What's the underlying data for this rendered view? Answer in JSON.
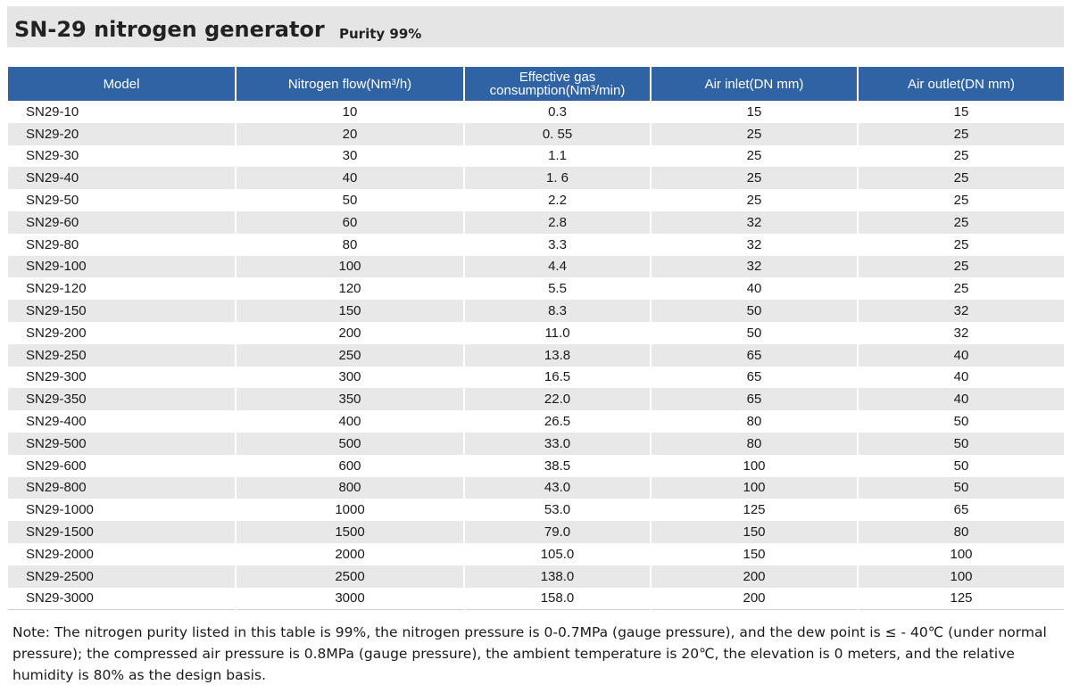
{
  "title": {
    "main": "SN-29 nitrogen generator",
    "sub": "Purity 99%"
  },
  "table": {
    "headers": [
      "Model",
      "Nitrogen flow(Nm³/h)",
      "Effective gas consumption(Nm³/min)",
      "Air inlet(DN mm)",
      "Air outlet(DN mm)"
    ],
    "rows": [
      [
        "SN29-10",
        "10",
        "0.3",
        "15",
        "15"
      ],
      [
        "SN29-20",
        "20",
        "0. 55",
        "25",
        "25"
      ],
      [
        "SN29-30",
        "30",
        "1.1",
        "25",
        "25"
      ],
      [
        "SN29-40",
        "40",
        "1. 6",
        "25",
        "25"
      ],
      [
        "SN29-50",
        "50",
        "2.2",
        "25",
        "25"
      ],
      [
        "SN29-60",
        "60",
        "2.8",
        "32",
        "25"
      ],
      [
        "SN29-80",
        "80",
        "3.3",
        "32",
        "25"
      ],
      [
        "SN29-100",
        "100",
        "4.4",
        "32",
        "25"
      ],
      [
        "SN29-120",
        "120",
        "5.5",
        "40",
        "25"
      ],
      [
        "SN29-150",
        "150",
        "8.3",
        "50",
        "32"
      ],
      [
        "SN29-200",
        "200",
        "11.0",
        "50",
        "32"
      ],
      [
        "SN29-250",
        "250",
        "13.8",
        "65",
        "40"
      ],
      [
        "SN29-300",
        "300",
        "16.5",
        "65",
        "40"
      ],
      [
        "SN29-350",
        "350",
        "22.0",
        "65",
        "40"
      ],
      [
        "SN29-400",
        "400",
        "26.5",
        "80",
        "50"
      ],
      [
        "SN29-500",
        "500",
        "33.0",
        "80",
        "50"
      ],
      [
        "SN29-600",
        "600",
        "38.5",
        "100",
        "50"
      ],
      [
        "SN29-800",
        "800",
        "43.0",
        "100",
        "50"
      ],
      [
        "SN29-1000",
        "1000",
        "53.0",
        "125",
        "65"
      ],
      [
        "SN29-1500",
        "1500",
        "79.0",
        "150",
        "80"
      ],
      [
        "SN29-2000",
        "2000",
        "105.0",
        "150",
        "100"
      ],
      [
        "SN29-2500",
        "2500",
        "138.0",
        "200",
        "100"
      ],
      [
        "SN29-3000",
        "3000",
        "158.0",
        "200",
        "125"
      ]
    ]
  },
  "note": "Note: The nitrogen purity listed in this table is 99%, the nitrogen pressure is 0-0.7MPa (gauge pressure), and the dew point is ≤ - 40℃ (under normal pressure); the compressed air pressure is 0.8MPa (gauge pressure), the ambient temperature is 20℃, the elevation is 0 meters, and the relative humidity is 80% as the design basis.",
  "colors": {
    "header_bg": "#2f63a4",
    "stripe_bg": "#e8e8e8",
    "title_bg": "#e5e5e5"
  }
}
